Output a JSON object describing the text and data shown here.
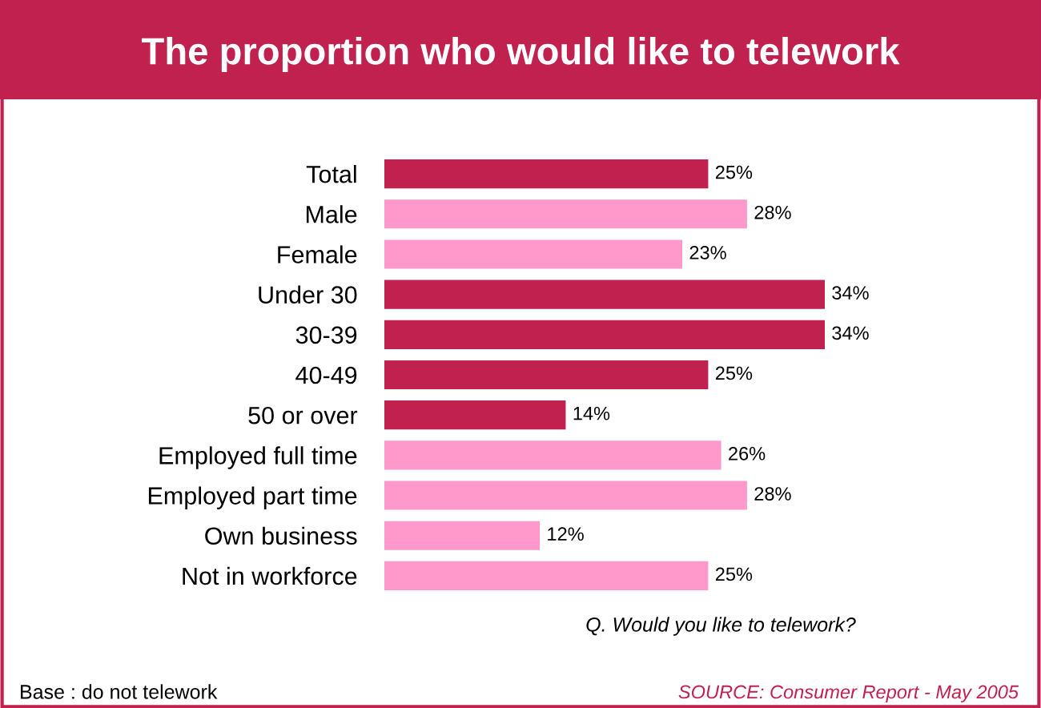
{
  "chart_data": {
    "type": "bar",
    "orientation": "horizontal",
    "title": "The proportion who would like to telework",
    "categories": [
      "Total",
      "Male",
      "Female",
      "Under 30",
      "30-39",
      "40-49",
      "50 or over",
      "Employed full time",
      "Employed part time",
      "Own business",
      "Not in workforce"
    ],
    "values": [
      25,
      28,
      23,
      34,
      34,
      25,
      14,
      26,
      28,
      12,
      25
    ],
    "colors": [
      "#c0214f",
      "#ff99cc",
      "#ff99cc",
      "#c0214f",
      "#c0214f",
      "#c0214f",
      "#c0214f",
      "#ff99cc",
      "#ff99cc",
      "#ff99cc",
      "#ff99cc"
    ],
    "value_labels": [
      "25%",
      "28%",
      "23%",
      "34%",
      "34%",
      "25%",
      "14%",
      "26%",
      "28%",
      "12%",
      "25%"
    ],
    "annotations": [
      "Q. Would you like to telework?",
      "Base : do not telework",
      "SOURCE: Consumer Report - May 2005"
    ]
  }
}
